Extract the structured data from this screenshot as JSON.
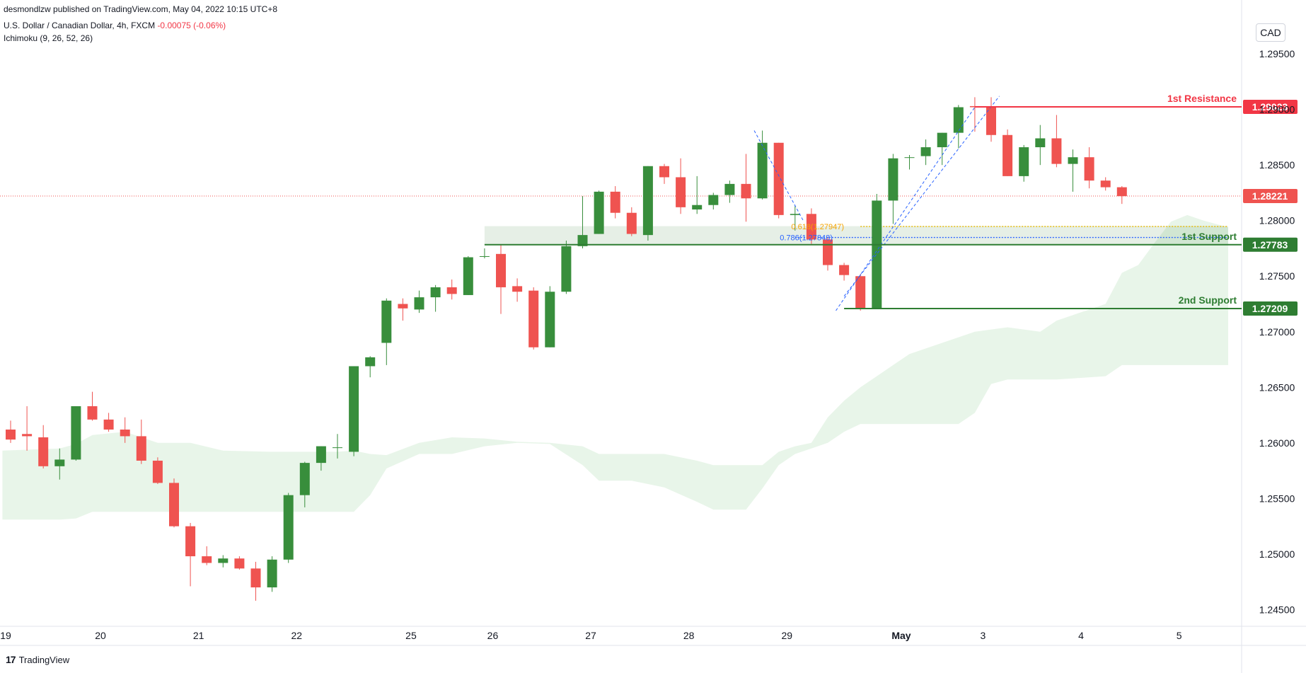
{
  "header": {
    "published": "desmondlzw published on TradingView.com, May 04, 2022 10:15 UTC+8",
    "symbol": "U.S. Dollar / Canadian Dollar, 4h, FXCM",
    "change": "-0.00075 (-0.06%)",
    "indicator": "Ichimoku (9, 26, 52, 26)"
  },
  "currency_button": "CAD",
  "brand": {
    "logo": "17",
    "name": "TradingView"
  },
  "colors": {
    "up": "#388e3c",
    "down": "#ef5350",
    "resistance": "#f23645",
    "support": "#2e7d32",
    "cloud_bull": "#e8f5e9",
    "cloud_bear": "#fde8e8"
  },
  "chart_data": {
    "type": "candlestick",
    "timeframe": "4h",
    "ylim": [
      1.2435,
      1.2987
    ],
    "y_ticks": [
      "1.29500",
      "1.29000",
      "1.28500",
      "1.28000",
      "1.27500",
      "1.27000",
      "1.26500",
      "1.26000",
      "1.25500",
      "1.25000",
      "1.24500"
    ],
    "x_ticks": [
      {
        "label": "19",
        "i": -0.5
      },
      {
        "label": "20",
        "i": 5.5
      },
      {
        "label": "21",
        "i": 11.5
      },
      {
        "label": "22",
        "i": 17.5
      },
      {
        "label": "25",
        "i": 24.5
      },
      {
        "label": "26",
        "i": 29.5
      },
      {
        "label": "27",
        "i": 35.5
      },
      {
        "label": "28",
        "i": 41.5
      },
      {
        "label": "29",
        "i": 47.5
      },
      {
        "label": "May",
        "i": 54.5,
        "bold": true
      },
      {
        "label": "3",
        "i": 59.5
      },
      {
        "label": "4",
        "i": 65.5
      },
      {
        "label": "5",
        "i": 71.5
      }
    ],
    "candles": [
      [
        1.2612,
        1.262,
        1.26,
        1.2603
      ],
      [
        1.2608,
        1.2633,
        1.2593,
        1.2606
      ],
      [
        1.2605,
        1.2616,
        1.2577,
        1.2579
      ],
      [
        1.2579,
        1.2595,
        1.2567,
        1.2585
      ],
      [
        1.2585,
        1.2633,
        1.2584,
        1.2633
      ],
      [
        1.2633,
        1.2646,
        1.262,
        1.2621
      ],
      [
        1.2621,
        1.2627,
        1.261,
        1.2612
      ],
      [
        1.2612,
        1.2623,
        1.26,
        1.2606
      ],
      [
        1.2606,
        1.2621,
        1.2581,
        1.2584
      ],
      [
        1.2584,
        1.2587,
        1.2563,
        1.2564
      ],
      [
        1.2564,
        1.2568,
        1.2524,
        1.2525
      ],
      [
        1.2525,
        1.2528,
        1.2471,
        1.2498
      ],
      [
        1.2498,
        1.2507,
        1.249,
        1.2492
      ],
      [
        1.2492,
        1.2499,
        1.2488,
        1.2496
      ],
      [
        1.2496,
        1.2498,
        1.2486,
        1.2487
      ],
      [
        1.2487,
        1.2493,
        1.2458,
        1.247
      ],
      [
        1.247,
        1.2498,
        1.2466,
        1.2495
      ],
      [
        1.2495,
        1.2555,
        1.2492,
        1.2553
      ],
      [
        1.2553,
        1.2583,
        1.2542,
        1.2582
      ],
      [
        1.2582,
        1.2597,
        1.2575,
        1.2597
      ],
      [
        1.2596,
        1.2608,
        1.2586,
        1.2596
      ],
      [
        1.2592,
        1.2669,
        1.2588,
        1.2669
      ],
      [
        1.2669,
        1.2678,
        1.2659,
        1.2677
      ],
      [
        1.269,
        1.273,
        1.267,
        1.2728
      ],
      [
        1.2725,
        1.273,
        1.271,
        1.2721
      ],
      [
        1.272,
        1.2737,
        1.2717,
        1.2731
      ],
      [
        1.2731,
        1.2742,
        1.2718,
        1.274
      ],
      [
        1.274,
        1.2747,
        1.2729,
        1.2734
      ],
      [
        1.2733,
        1.2768,
        1.2733,
        1.2767
      ],
      [
        1.2768,
        1.2775,
        1.2766,
        1.2768
      ],
      [
        1.277,
        1.2778,
        1.2716,
        1.274
      ],
      [
        1.2741,
        1.2748,
        1.2727,
        1.2736
      ],
      [
        1.2737,
        1.274,
        1.2684,
        1.2686
      ],
      [
        1.2686,
        1.2741,
        1.2686,
        1.2736
      ],
      [
        1.2736,
        1.2782,
        1.2734,
        1.2777
      ],
      [
        1.2777,
        1.2822,
        1.2775,
        1.2787
      ],
      [
        1.2788,
        1.2827,
        1.2788,
        1.2826
      ],
      [
        1.2826,
        1.2831,
        1.2802,
        1.2807
      ],
      [
        1.2807,
        1.2812,
        1.2786,
        1.2788
      ],
      [
        1.2787,
        1.2849,
        1.2782,
        1.2849
      ],
      [
        1.2849,
        1.2851,
        1.2833,
        1.2839
      ],
      [
        1.2839,
        1.2856,
        1.2806,
        1.2812
      ],
      [
        1.281,
        1.284,
        1.2806,
        1.2814
      ],
      [
        1.2814,
        1.2825,
        1.281,
        1.2823
      ],
      [
        1.2823,
        1.2836,
        1.2816,
        1.2833
      ],
      [
        1.2833,
        1.286,
        1.2799,
        1.282
      ],
      [
        1.282,
        1.2881,
        1.2819,
        1.287
      ],
      [
        1.287,
        1.287,
        1.2802,
        1.2805
      ],
      [
        1.2805,
        1.2813,
        1.2791,
        1.2806
      ],
      [
        1.2806,
        1.2811,
        1.2779,
        1.2783
      ],
      [
        1.2783,
        1.2785,
        1.2755,
        1.276
      ],
      [
        1.276,
        1.2762,
        1.2746,
        1.2751
      ],
      [
        1.275,
        1.2752,
        1.2719,
        1.2721
      ],
      [
        1.2721,
        1.2824,
        1.2721,
        1.2818
      ],
      [
        1.2818,
        1.286,
        1.2797,
        1.2856
      ],
      [
        1.2857,
        1.2859,
        1.2846,
        1.2857
      ],
      [
        1.2858,
        1.2873,
        1.285,
        1.2866
      ],
      [
        1.2866,
        1.2879,
        1.285,
        1.2879
      ],
      [
        1.2879,
        1.2904,
        1.2865,
        1.2902
      ],
      [
        1.2903,
        1.2911,
        1.288,
        1.2902
      ],
      [
        1.2902,
        1.2911,
        1.2871,
        1.2877
      ],
      [
        1.2877,
        1.2882,
        1.284,
        1.284
      ],
      [
        1.284,
        1.2868,
        1.2835,
        1.2866
      ],
      [
        1.2866,
        1.2886,
        1.285,
        1.2874
      ],
      [
        1.2874,
        1.2895,
        1.2848,
        1.2851
      ],
      [
        1.2851,
        1.2864,
        1.2826,
        1.2857
      ],
      [
        1.2857,
        1.2866,
        1.2829,
        1.2836
      ],
      [
        1.2836,
        1.2839,
        1.2827,
        1.283
      ],
      [
        1.283,
        1.2831,
        1.2815,
        1.2822
      ]
    ],
    "ichimoku_cloud": [
      [
        -0.5,
        1.2593,
        1.2531
      ],
      [
        3,
        1.2595,
        1.2531
      ],
      [
        4,
        1.2599,
        1.2532
      ],
      [
        5,
        1.2607,
        1.2538
      ],
      [
        7,
        1.261,
        1.2538
      ],
      [
        9,
        1.26,
        1.2538
      ],
      [
        11,
        1.26,
        1.2538
      ],
      [
        13,
        1.2593,
        1.2538
      ],
      [
        16,
        1.2592,
        1.2538
      ],
      [
        18,
        1.2592,
        1.2538
      ],
      [
        20,
        1.2592,
        1.2538
      ],
      [
        21,
        1.2593,
        1.2538
      ],
      [
        22,
        1.259,
        1.2553
      ],
      [
        23,
        1.2589,
        1.2577
      ],
      [
        25,
        1.26,
        1.259
      ],
      [
        27,
        1.2605,
        1.259
      ],
      [
        29,
        1.2604,
        1.2597
      ],
      [
        31,
        1.2601,
        1.26
      ],
      [
        33,
        1.26,
        1.2599
      ],
      [
        35,
        1.2597,
        1.258
      ],
      [
        36,
        1.259,
        1.2566
      ],
      [
        38,
        1.259,
        1.2566
      ],
      [
        40,
        1.259,
        1.256
      ],
      [
        42,
        1.2584,
        1.2547
      ],
      [
        43,
        1.258,
        1.254
      ],
      [
        44,
        1.258,
        1.254
      ],
      [
        45,
        1.258,
        1.254
      ],
      [
        46,
        1.258,
        1.2559
      ],
      [
        47,
        1.2592,
        1.258
      ],
      [
        48,
        1.2597,
        1.259
      ],
      [
        49,
        1.26,
        1.2595
      ],
      [
        50,
        1.2623,
        1.26
      ],
      [
        51,
        1.2638,
        1.261
      ],
      [
        52,
        1.265,
        1.2617
      ],
      [
        53,
        1.266,
        1.2617
      ],
      [
        54,
        1.267,
        1.2617
      ],
      [
        55,
        1.268,
        1.2617
      ],
      [
        57,
        1.269,
        1.2617
      ],
      [
        58,
        1.2695,
        1.2617
      ],
      [
        59,
        1.27,
        1.2627
      ],
      [
        60,
        1.2702,
        1.2653
      ],
      [
        61,
        1.2704,
        1.2657
      ],
      [
        63,
        1.27,
        1.2657
      ],
      [
        64,
        1.271,
        1.2657
      ],
      [
        65,
        1.2715,
        1.2658
      ],
      [
        67,
        1.2725,
        1.266
      ],
      [
        68,
        1.2753,
        1.267
      ],
      [
        69,
        1.276,
        1.267
      ],
      [
        70,
        1.278,
        1.267
      ],
      [
        71,
        1.2799,
        1.267
      ],
      [
        72,
        1.2805,
        1.267
      ],
      [
        73,
        1.28,
        1.267
      ],
      [
        74.5,
        1.2794,
        1.267
      ]
    ],
    "levels": [
      {
        "name": "1st Resistance",
        "value": 1.29023,
        "label": "1.29023",
        "color": "#f23645",
        "from_i": 59
      },
      {
        "name": "1st Support",
        "value": 1.27783,
        "label": "1.27783",
        "color": "#2e7d32",
        "from_i": 29
      },
      {
        "name": "2nd Support",
        "value": 1.27209,
        "label": "1.27209",
        "color": "#2e7d32",
        "from_i": 51
      }
    ],
    "current_price": {
      "value": 1.28221,
      "label": "1.28221"
    },
    "support_zone": {
      "from_i": 29,
      "to_i": 74.5,
      "top": 1.2795,
      "bottom": 1.2778
    },
    "fib_labels": [
      {
        "text": "0.786(1.27848)",
        "i": 47.5,
        "value": 1.27848,
        "color": "#2962ff"
      },
      {
        "text": "0.618(1.27947)",
        "i": 48.2,
        "value": 1.27947,
        "color": "#f5a300"
      }
    ],
    "fib_lines": [
      {
        "value": 1.27848,
        "from_i": 48,
        "to_i": 74.5,
        "color": "#2962ff"
      },
      {
        "value": 1.27947,
        "from_i": 52,
        "to_i": 74.5,
        "color": "#e6b800"
      }
    ],
    "trend_lines": [
      {
        "i1": 45.5,
        "v1": 1.2881,
        "i2": 48.5,
        "v2": 1.28
      },
      {
        "i1": 50.5,
        "v1": 1.2719,
        "i2": 59,
        "v2": 1.2902
      },
      {
        "i1": 51,
        "v1": 1.2732,
        "i2": 60.5,
        "v2": 1.2912
      }
    ]
  }
}
